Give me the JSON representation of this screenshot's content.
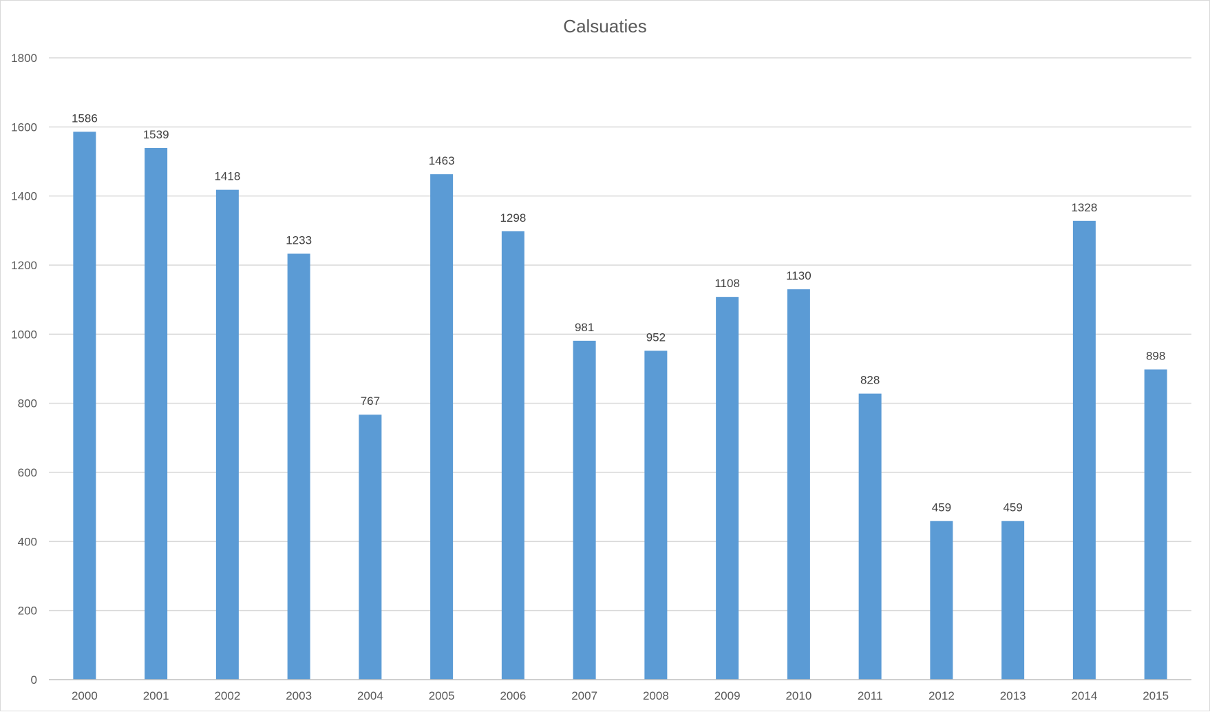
{
  "chart_data": {
    "type": "bar",
    "title": "Calsuaties",
    "xlabel": "",
    "ylabel": "",
    "categories": [
      "2000",
      "2001",
      "2002",
      "2003",
      "2004",
      "2005",
      "2006",
      "2007",
      "2008",
      "2009",
      "2010",
      "2011",
      "2012",
      "2013",
      "2014",
      "2015"
    ],
    "values": [
      1586,
      1539,
      1418,
      1233,
      767,
      1463,
      1298,
      981,
      952,
      1108,
      1130,
      828,
      459,
      459,
      1328,
      898
    ],
    "ylim": [
      0,
      1800
    ],
    "yticks": [
      "0",
      "200",
      "400",
      "600",
      "800",
      "1000",
      "1200",
      "1400",
      "1600",
      "1800"
    ],
    "grid": true,
    "legend": "none",
    "bar_color": "#5b9bd5",
    "data_labels": true
  }
}
